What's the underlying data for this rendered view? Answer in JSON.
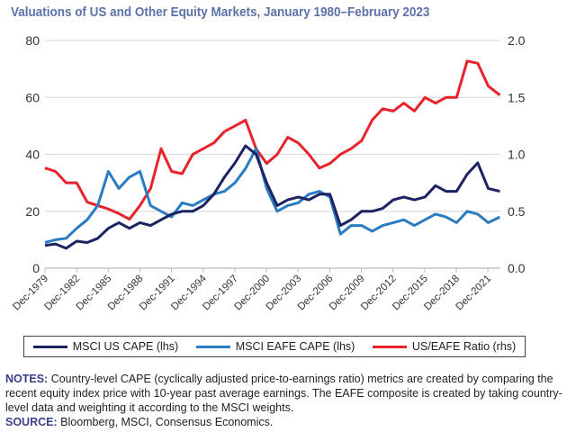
{
  "chart_data": {
    "type": "line",
    "title": "Valuations of US and Other Equity Markets, January 1980–February 2023",
    "left_axis": {
      "ylim": [
        0,
        80
      ],
      "ticks": [
        "0",
        "20",
        "40",
        "60",
        "80"
      ]
    },
    "right_axis": {
      "ylim": [
        0,
        2.0
      ],
      "ticks": [
        "0.0",
        "0.5",
        "1.0",
        "1.5",
        "2.0"
      ]
    },
    "x_ticks": [
      "Dec-1979",
      "Dec-1982",
      "Dec-1985",
      "Dec-1988",
      "Dec-1991",
      "Dec-1994",
      "Dec-1997",
      "Dec-2000",
      "Dec-2003",
      "Dec-2006",
      "Dec-2009",
      "Dec-2012",
      "Dec-2015",
      "Dec-2018",
      "Dec-2021"
    ],
    "grid": "horizontal",
    "legend_placement": "bottom",
    "x": [
      1980,
      1981,
      1982,
      1983,
      1984,
      1985,
      1986,
      1987,
      1988,
      1989,
      1990,
      1991,
      1992,
      1993,
      1994,
      1995,
      1996,
      1997,
      1998,
      1999,
      2000,
      2001,
      2002,
      2003,
      2004,
      2005,
      2006,
      2007,
      2008,
      2009,
      2010,
      2011,
      2012,
      2013,
      2014,
      2015,
      2016,
      2017,
      2018,
      2019,
      2020,
      2021,
      2022,
      2023.1
    ],
    "series": [
      {
        "name": "MSCI US CAPE (lhs)",
        "axis": "left",
        "color": "#1c2262",
        "values": [
          8,
          8.5,
          7,
          9.5,
          9,
          10.5,
          14,
          16,
          14,
          16,
          15,
          17,
          19,
          20,
          20,
          22,
          26,
          32,
          37,
          43,
          40,
          30,
          22,
          24,
          25,
          24,
          26,
          26,
          15,
          17,
          20,
          20,
          21,
          24,
          25,
          24,
          25,
          29,
          27,
          27,
          33,
          37,
          28,
          27
        ]
      },
      {
        "name": "MSCI EAFE CAPE (lhs)",
        "axis": "left",
        "color": "#2a7cc2",
        "values": [
          9,
          10,
          10.5,
          14,
          17,
          22,
          34,
          28,
          32,
          34,
          22,
          20,
          18,
          23,
          22,
          24,
          26,
          27,
          30,
          35,
          42,
          28,
          20,
          22,
          23,
          26,
          27,
          25,
          12,
          15,
          15,
          13,
          15,
          16,
          17,
          15,
          17,
          19,
          18,
          16,
          20,
          19,
          16,
          18
        ]
      },
      {
        "name": "US/EAFE Ratio (rhs)",
        "axis": "right",
        "color": "#e8232b",
        "values": [
          0.88,
          0.85,
          0.75,
          0.75,
          0.58,
          0.55,
          0.52,
          0.48,
          0.43,
          0.55,
          0.7,
          1.05,
          0.85,
          0.83,
          1.0,
          1.05,
          1.1,
          1.2,
          1.25,
          1.3,
          1.05,
          0.92,
          1.0,
          1.15,
          1.1,
          1.0,
          0.88,
          0.92,
          1.0,
          1.05,
          1.12,
          1.3,
          1.4,
          1.38,
          1.45,
          1.38,
          1.5,
          1.45,
          1.5,
          1.5,
          1.82,
          1.8,
          1.6,
          1.52
        ]
      }
    ]
  },
  "notes": {
    "notes_label": "NOTES:",
    "notes_text": " Country-level CAPE (cyclically adjusted price-to-earnings ratio) metrics are created by comparing the recent equity index price with 10-year past average earnings. The EAFE composite is created by taking country-level data and weighting it according to the MSCI weights.",
    "source_label": "SOURCE:",
    "source_text": " Bloomberg, MSCI, Consensus Economics."
  }
}
